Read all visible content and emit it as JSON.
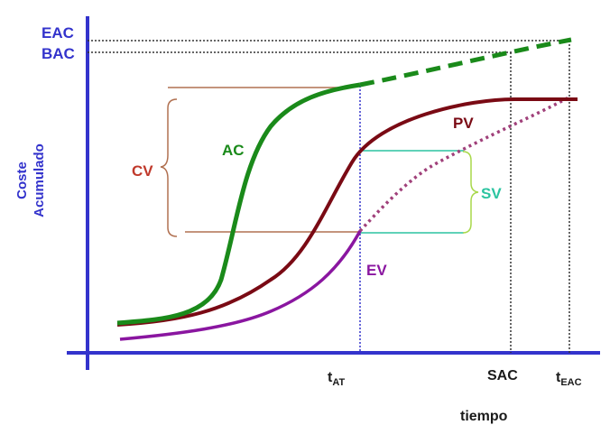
{
  "labels": {
    "eac": "EAC",
    "bac": "BAC",
    "cv": "CV",
    "ac": "AC",
    "pv": "PV",
    "sv": "SV",
    "ev": "EV",
    "y_axis_line1": "Coste",
    "y_axis_line2": "Acumulado",
    "x_axis": "tiempo",
    "t_at_main": "t",
    "t_at_sub": "AT",
    "sac": "SAC",
    "t_eac_main": "t",
    "t_eac_sub": "EAC"
  },
  "colors": {
    "axis": "#3333cc",
    "ac": "#1a8a1a",
    "pv": "#7a0a14",
    "ev": "#8a16a0",
    "cv": "#c0392b",
    "cv_bracket": "#b07050",
    "sv": "#2bc4a0",
    "sv_bracket": "#a8d84a",
    "guide": "#333333",
    "t_at_guide": "#3333cc"
  }
}
